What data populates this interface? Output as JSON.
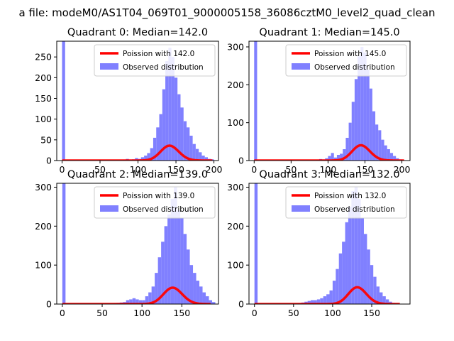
{
  "suptitle": "a file: modeM0/AS1T04_069T01_9000005158_36086cztM0_level2_quad_clean",
  "colors": {
    "hist": "#8080ff",
    "fit": "#ff0000",
    "axis": "#000000",
    "legend_border": "#cccccc"
  },
  "chart_data": [
    {
      "type": "bar",
      "title": "Quadrant 0: Median=142.0",
      "xlim": [
        -7,
        206
      ],
      "ylim": [
        0,
        288
      ],
      "xticks": [
        0,
        50,
        100,
        150,
        200
      ],
      "xtick_labels": [
        "0",
        "50",
        "100",
        "150",
        "200"
      ],
      "yticks": [
        0,
        50,
        100,
        150,
        200,
        250
      ],
      "ytick_labels": [
        "0",
        "50",
        "100",
        "150",
        "200",
        "250"
      ],
      "legend": {
        "position": "upper-right",
        "entries": [
          "Poission with 142.0",
          "Observed distribution"
        ]
      },
      "series": [
        {
          "name": "Observed distribution",
          "kind": "hist",
          "bin_width": 4,
          "x": [
            0,
            80,
            84,
            88,
            92,
            96,
            100,
            104,
            108,
            112,
            116,
            120,
            124,
            128,
            132,
            136,
            140,
            144,
            148,
            152,
            156,
            160,
            164,
            168,
            172,
            176,
            180,
            184,
            188,
            192,
            196
          ],
          "values": [
            288,
            2,
            4,
            2,
            3,
            6,
            4,
            8,
            12,
            18,
            30,
            55,
            80,
            112,
            172,
            240,
            272,
            250,
            200,
            160,
            128,
            95,
            80,
            60,
            40,
            28,
            20,
            12,
            8,
            4,
            3
          ]
        },
        {
          "name": "Poission with 142.0",
          "kind": "poisson",
          "lambda": 142.0,
          "scale": 1073,
          "x_start": 0,
          "x_end": 198
        }
      ]
    },
    {
      "type": "bar",
      "title": "Quadrant 1: Median=145.0",
      "xlim": [
        -7,
        211
      ],
      "ylim": [
        0,
        315
      ],
      "xticks": [
        0,
        50,
        100,
        150,
        200
      ],
      "xtick_labels": [
        "0",
        "50",
        "100",
        "150",
        "200"
      ],
      "yticks": [
        0,
        100,
        200,
        300
      ],
      "ytick_labels": [
        "0",
        "100",
        "200",
        "300"
      ],
      "legend": {
        "position": "upper-right",
        "entries": [
          "Poission with 145.0",
          "Observed distribution"
        ]
      },
      "series": [
        {
          "name": "Observed distribution",
          "kind": "hist",
          "bin_width": 4,
          "x": [
            0,
            84,
            88,
            92,
            96,
            100,
            104,
            108,
            112,
            116,
            120,
            124,
            128,
            132,
            136,
            140,
            144,
            148,
            152,
            156,
            160,
            164,
            168,
            172,
            176,
            180,
            184,
            188,
            192,
            196
          ],
          "values": [
            315,
            2,
            4,
            3,
            6,
            12,
            20,
            8,
            15,
            18,
            30,
            60,
            100,
            155,
            215,
            275,
            300,
            285,
            240,
            190,
            130,
            95,
            80,
            55,
            40,
            30,
            20,
            12,
            6,
            3
          ]
        },
        {
          "name": "Poission with 145.0",
          "kind": "poisson",
          "lambda": 145.0,
          "scale": 1218,
          "x_start": 0,
          "x_end": 203
        }
      ]
    },
    {
      "type": "bar",
      "title": "Quadrant 2: Median=139.0",
      "xlim": [
        -7,
        196
      ],
      "ylim": [
        0,
        310
      ],
      "xticks": [
        0,
        50,
        100,
        150
      ],
      "xtick_labels": [
        "0",
        "50",
        "100",
        "150"
      ],
      "yticks": [
        0,
        100,
        200,
        300
      ],
      "ytick_labels": [
        "0",
        "100",
        "200",
        "300"
      ],
      "legend": {
        "position": "upper-right",
        "entries": [
          "Poission with 139.0",
          "Observed distribution"
        ]
      },
      "series": [
        {
          "name": "Observed distribution",
          "kind": "hist",
          "bin_width": 4,
          "x": [
            0,
            64,
            68,
            72,
            76,
            80,
            84,
            88,
            92,
            96,
            100,
            104,
            108,
            112,
            116,
            120,
            124,
            128,
            132,
            136,
            140,
            144,
            148,
            152,
            156,
            160,
            164,
            168,
            172,
            176,
            180,
            184,
            188
          ],
          "values": [
            310,
            2,
            3,
            4,
            5,
            10,
            12,
            15,
            12,
            10,
            10,
            20,
            30,
            45,
            80,
            120,
            160,
            200,
            230,
            270,
            300,
            240,
            220,
            180,
            140,
            100,
            80,
            60,
            45,
            30,
            20,
            10,
            5
          ]
        },
        {
          "name": "Poission with 139.0",
          "kind": "poisson",
          "lambda": 139.0,
          "scale": 1240,
          "x_start": 0,
          "x_end": 186
        }
      ]
    },
    {
      "type": "bar",
      "title": "Quadrant 3: Median=132.0",
      "xlim": [
        -7,
        199
      ],
      "ylim": [
        0,
        310
      ],
      "xticks": [
        0,
        50,
        100,
        150
      ],
      "xtick_labels": [
        "0",
        "50",
        "100",
        "150"
      ],
      "yticks": [
        0,
        100,
        200,
        300
      ],
      "ytick_labels": [
        "0",
        "100",
        "200",
        "300"
      ],
      "legend": {
        "position": "upper-right",
        "entries": [
          "Poission with 132.0",
          "Observed distribution"
        ]
      },
      "series": [
        {
          "name": "Observed distribution",
          "kind": "hist",
          "bin_width": 4,
          "x": [
            0,
            56,
            60,
            64,
            68,
            72,
            76,
            80,
            84,
            88,
            92,
            96,
            100,
            104,
            108,
            112,
            116,
            120,
            124,
            128,
            132,
            136,
            140,
            144,
            148,
            152,
            156,
            160,
            164,
            168,
            172,
            176,
            180
          ],
          "values": [
            310,
            2,
            4,
            6,
            8,
            10,
            10,
            12,
            15,
            20,
            25,
            35,
            60,
            90,
            130,
            160,
            210,
            250,
            290,
            300,
            270,
            220,
            180,
            140,
            100,
            70,
            45,
            30,
            20,
            12,
            6,
            3,
            2
          ]
        },
        {
          "name": "Poission with 132.0",
          "kind": "poisson",
          "lambda": 132.0,
          "scale": 1240,
          "x_start": 0,
          "x_end": 186
        }
      ]
    }
  ]
}
